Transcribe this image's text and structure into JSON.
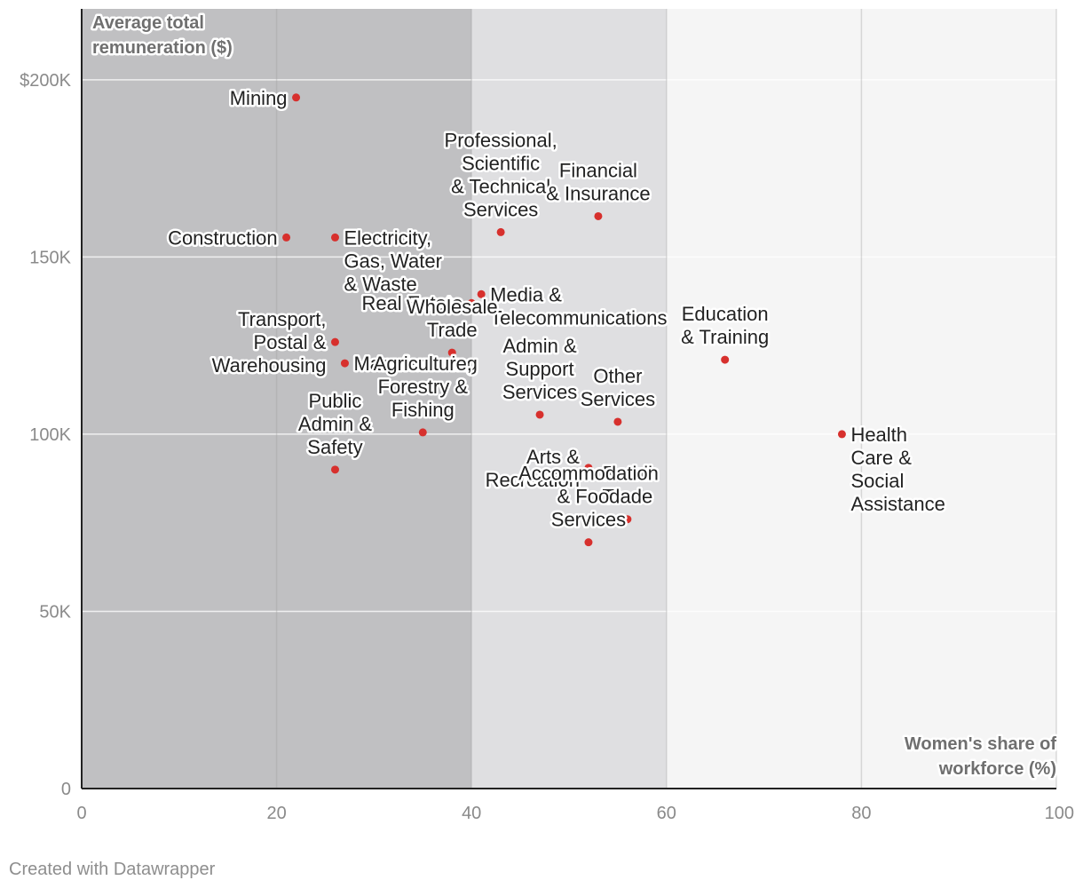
{
  "chart_data": {
    "type": "scatter",
    "xlabel": [
      "Women's share of",
      "workforce (%)"
    ],
    "ylabel": [
      "Average total",
      "remuneration ($)"
    ],
    "xlim": [
      0,
      100
    ],
    "ylim": [
      0,
      220000
    ],
    "x_ticks": [
      {
        "value": 0,
        "label": "0"
      },
      {
        "value": 20,
        "label": "20"
      },
      {
        "value": 40,
        "label": "40"
      },
      {
        "value": 60,
        "label": "60"
      },
      {
        "value": 80,
        "label": "80"
      },
      {
        "value": 100,
        "label": "100"
      }
    ],
    "y_ticks": [
      {
        "value": 0,
        "label": "0"
      },
      {
        "value": 50000,
        "label": "50K"
      },
      {
        "value": 100000,
        "label": "100K"
      },
      {
        "value": 150000,
        "label": "150K"
      },
      {
        "value": 200000,
        "label": "$200K"
      }
    ],
    "bands": [
      {
        "from": 0,
        "to": 40,
        "color": "#c0c0c2"
      },
      {
        "from": 40,
        "to": 60,
        "color": "#dfdfe1"
      },
      {
        "from": 60,
        "to": 100,
        "color": "#f5f5f5"
      }
    ],
    "grid": true,
    "point_color": "#d7302d",
    "points": [
      {
        "name": "Mining",
        "lines": [
          "Mining"
        ],
        "x": 22,
        "y": 195000,
        "anchor": "end"
      },
      {
        "name": "Professional, Scientific & Technical Services",
        "lines": [
          "Professional,",
          "Scientific",
          "& Technical",
          "Services"
        ],
        "x": 43,
        "y": 157000,
        "anchor": "middle"
      },
      {
        "name": "Financial & Insurance",
        "lines": [
          "Financial",
          "& Insurance"
        ],
        "x": 53,
        "y": 161500,
        "anchor": "middle"
      },
      {
        "name": "Construction",
        "lines": [
          "Construction"
        ],
        "x": 21,
        "y": 155500,
        "anchor": "end"
      },
      {
        "name": "Electricity, Gas, Water & Waste",
        "lines": [
          "Electricity,",
          "Gas, Water",
          "& Waste"
        ],
        "x": 26,
        "y": 155500,
        "anchor": "start"
      },
      {
        "name": "Media & Telecommunications",
        "lines": [
          "Media &",
          "Telecommunications"
        ],
        "x": 41,
        "y": 139500,
        "anchor": "start"
      },
      {
        "name": "Real Estate",
        "lines": [
          "Real Estate"
        ],
        "x": 40,
        "y": 137000,
        "anchor": "end"
      },
      {
        "name": "Education & Training",
        "lines": [
          "Education",
          "& Training"
        ],
        "x": 66,
        "y": 121000,
        "anchor": "middle"
      },
      {
        "name": "Transport, Postal & Warehousing",
        "lines": [
          "Transport,",
          "Postal &",
          "Warehousing"
        ],
        "x": 26,
        "y": 126000,
        "anchor": "end"
      },
      {
        "name": "Manufacturing",
        "lines": [
          "Manufacturing"
        ],
        "x": 27,
        "y": 120000,
        "anchor": "start"
      },
      {
        "name": "Wholesale Trade",
        "lines": [
          "Wholesale",
          "Trade"
        ],
        "x": 38,
        "y": 123000,
        "anchor": "middle"
      },
      {
        "name": "Admin & Support Services",
        "lines": [
          "Admin &",
          "Support",
          "Services"
        ],
        "x": 47,
        "y": 105500,
        "anchor": "middle"
      },
      {
        "name": "Other Services",
        "lines": [
          "Other",
          "Services"
        ],
        "x": 55,
        "y": 103500,
        "anchor": "middle"
      },
      {
        "name": "Health Care & Social Assistance",
        "lines": [
          "Health",
          "Care &",
          "Social",
          "Assistance"
        ],
        "x": 78,
        "y": 100000,
        "anchor": "start"
      },
      {
        "name": "Agriculture, Forestry & Fishing",
        "lines": [
          "Agriculture,",
          "Forestry &",
          "Fishing"
        ],
        "x": 35,
        "y": 100500,
        "anchor": "middle"
      },
      {
        "name": "Public Admin & Safety",
        "lines": [
          "Public",
          "Admin &",
          "Safety"
        ],
        "x": 26,
        "y": 90000,
        "anchor": "middle"
      },
      {
        "name": "Arts & Recreation",
        "lines": [
          "Arts &",
          "Recreation"
        ],
        "x": 52,
        "y": 90500,
        "anchor": "end"
      },
      {
        "name": "Retail Trade",
        "lines": [
          "Retail",
          "Trade"
        ],
        "x": 56,
        "y": 76000,
        "anchor": "middle"
      },
      {
        "name": "Accommodation & Food Services",
        "lines": [
          "Accommodation",
          "& Food",
          "Services"
        ],
        "x": 52,
        "y": 69500,
        "anchor": "middle"
      }
    ]
  },
  "footer": {
    "credit": "Created with Datawrapper"
  }
}
